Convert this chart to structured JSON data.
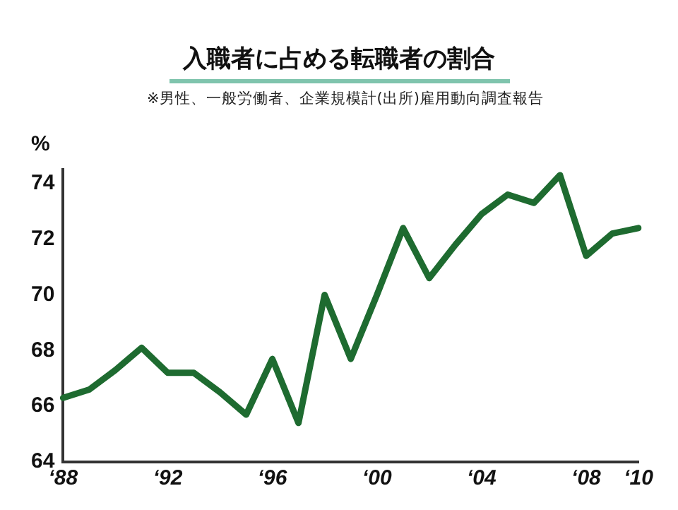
{
  "chart_data": {
    "type": "line",
    "title": "入職者に占める転職者の割合",
    "subtitle": "※男性、一般労働者、企業規模計(出所)雇用動向調査報告",
    "ylabel": "%",
    "categories": [
      "‘88",
      null,
      null,
      null,
      "‘92",
      null,
      null,
      null,
      "‘96",
      null,
      null,
      null,
      "‘00",
      null,
      null,
      null,
      "‘04",
      null,
      null,
      null,
      "‘08",
      null,
      "‘10"
    ],
    "series": [
      {
        "color": "#1e6b30",
        "values": [
          66.3,
          66.6,
          67.3,
          68.1,
          67.2,
          67.2,
          66.5,
          65.7,
          67.7,
          65.4,
          70.0,
          67.7,
          70.0,
          72.4,
          70.6,
          71.8,
          72.9,
          73.6,
          73.3,
          74.3,
          71.4,
          72.2,
          72.4
        ]
      }
    ],
    "ylim": [
      64,
      74.5
    ],
    "yticks": [
      64,
      66,
      68,
      70,
      72,
      74
    ],
    "grid": false,
    "legend": false,
    "marker": "none",
    "line_style": "solid"
  }
}
